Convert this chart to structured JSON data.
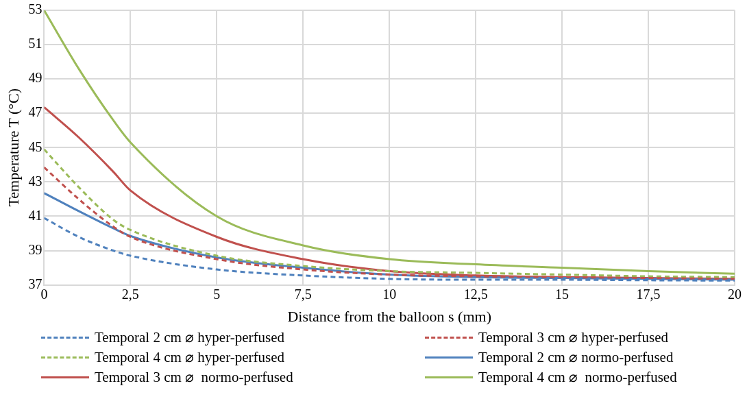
{
  "chart_data": {
    "type": "line",
    "xlabel": "Distance from the balloon s (mm)",
    "ylabel": "Temperature T (°C)",
    "x": [
      0,
      1,
      2,
      2.5,
      5,
      7.5,
      10,
      12.5,
      15,
      17.5,
      20
    ],
    "series": [
      {
        "name": "Temporal 2 cm ⌀ hyper-perfused",
        "color": "#4f81bd",
        "line_style": "dashed",
        "values": [
          40.9,
          39.8,
          39.0,
          38.7,
          37.9,
          37.55,
          37.35,
          37.3,
          37.3,
          37.27,
          37.25
        ]
      },
      {
        "name": "Temporal 3 cm ⌀ hyper-perfused",
        "color": "#c0504d",
        "line_style": "dashed",
        "values": [
          43.85,
          42.0,
          40.4,
          39.8,
          38.5,
          37.9,
          37.6,
          37.5,
          37.45,
          37.4,
          37.35
        ]
      },
      {
        "name": "Temporal 4 cm ⌀ hyper-perfused",
        "color": "#9bbb59",
        "line_style": "dashed",
        "values": [
          44.9,
          42.7,
          40.8,
          40.2,
          38.7,
          38.1,
          37.8,
          37.7,
          37.6,
          37.5,
          37.45
        ]
      },
      {
        "name": "Temporal 2 cm ⌀ normo-perfused",
        "color": "#4f81bd",
        "line_style": "solid",
        "values": [
          42.35,
          41.3,
          40.3,
          39.85,
          38.6,
          38.0,
          37.6,
          37.45,
          37.4,
          37.35,
          37.3
        ]
      },
      {
        "name": "Temporal 3 cm ⌀  normo-perfused",
        "color": "#c0504d",
        "line_style": "solid",
        "values": [
          47.35,
          45.6,
          43.6,
          42.5,
          39.8,
          38.5,
          37.8,
          37.55,
          37.45,
          37.4,
          37.35
        ]
      },
      {
        "name": "Temporal 4 cm ⌀  normo-perfused",
        "color": "#9bbb59",
        "line_style": "solid",
        "values": [
          53,
          49.6,
          46.6,
          45.3,
          41.0,
          39.3,
          38.5,
          38.2,
          38.0,
          37.8,
          37.65
        ]
      }
    ],
    "xlim": [
      0,
      20
    ],
    "xticks": [
      0,
      {
        "value": 2.5,
        "label": "2,5"
      },
      5,
      {
        "value": 7.5,
        "label": "7,5"
      },
      10,
      {
        "value": 12.5,
        "label": "12,5"
      },
      15,
      {
        "value": 17.5,
        "label": "17,5"
      },
      20
    ],
    "ylim": [
      37,
      53
    ],
    "yticks": [
      37,
      39,
      41,
      43,
      45,
      47,
      49,
      51,
      53
    ],
    "grid": true,
    "legend": "bottom",
    "marker": "none"
  }
}
